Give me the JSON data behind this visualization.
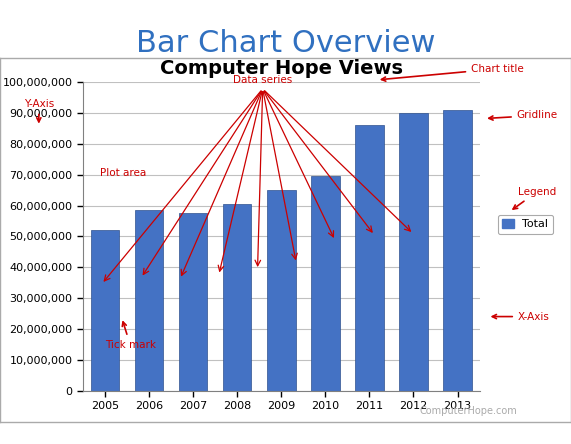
{
  "main_title": "Bar Chart Overview",
  "chart_title": "Computer Hope Views",
  "years": [
    2005,
    2006,
    2007,
    2008,
    2009,
    2010,
    2011,
    2012,
    2013
  ],
  "values": [
    52000000,
    58500000,
    57500000,
    60500000,
    65000000,
    69500000,
    86000000,
    90000000,
    91000000
  ],
  "bar_color": "#4472C4",
  "bar_edge_color": "#2F528F",
  "background_color": "#FFFFFF",
  "plot_area_color": "#FFFFFF",
  "grid_color": "#C0C0C0",
  "ylim": [
    0,
    100000000
  ],
  "ytick_step": 10000000,
  "legend_label": "Total",
  "legend_color": "#4472C4",
  "annotation_color": "#CC0000",
  "watermark_text": "ComputerHope.com",
  "watermark_color": "#AAAAAA",
  "main_title_color": "#3070C0",
  "main_title_fontsize": 22,
  "chart_title_fontsize": 14,
  "outer_border_color": "#AAAAAA"
}
